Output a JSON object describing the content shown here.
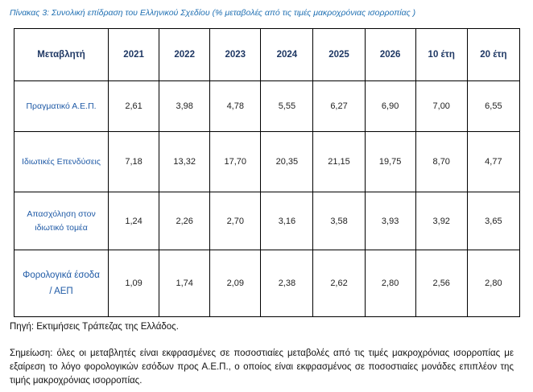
{
  "caption": "Πίνακας 3: Συνολική επίδραση του Ελληνικού Σχεδίου (% μεταβολές από τις τιμές μακροχρόνιας ισορροπίας )",
  "table": {
    "headers": [
      "Μεταβλητή",
      "2021",
      "2022",
      "2023",
      "2024",
      "2025",
      "2026",
      "10 έτη",
      "20 έτη"
    ],
    "rows": [
      {
        "label_lines": [
          "Πραγματικό Α.Ε.Π."
        ],
        "values": [
          "2,61",
          "3,98",
          "4,78",
          "5,55",
          "6,27",
          "6,90",
          "7,00",
          "6,55"
        ]
      },
      {
        "label_lines": [
          "Ιδιωτικές Επενδύσεις"
        ],
        "values": [
          "7,18",
          "13,32",
          "17,70",
          "20,35",
          "21,15",
          "19,75",
          "8,70",
          "4,77"
        ]
      },
      {
        "label_lines": [
          "Απασχόληση στον",
          "ιδιωτικό τομέα"
        ],
        "values": [
          "1,24",
          "2,26",
          "2,70",
          "3,16",
          "3,58",
          "3,93",
          "3,92",
          "3,65"
        ]
      },
      {
        "label_lines": [
          "Φορολογικά έσοδα",
          "/ ΑΕΠ"
        ],
        "values": [
          "1,09",
          "1,74",
          "2,09",
          "2,38",
          "2,62",
          "2,80",
          "2,56",
          "2,80"
        ]
      }
    ]
  },
  "source": "Πηγή: Εκτιμήσεις Τράπεζας της Ελλάδος.",
  "note": "Σημείωση: όλες οι μεταβλητές είναι εκφρασμένες σε ποσοστιαίες μεταβολές από τις τιμές μακροχρόνιας ισορροπίας με εξαίρεση το λόγο φορολογικών εσόδων προς Α.Ε.Π., ο οποίος είναι εκφρασμένος σε ποσοστιαίες μονάδες επιπλέον της τιμής μακροχρόνιας ισορροπίας.",
  "colors": {
    "caption": "#1f6fb2",
    "header_text": "#1f3864",
    "row_label": "#1f5aa6",
    "border": "#000000"
  }
}
